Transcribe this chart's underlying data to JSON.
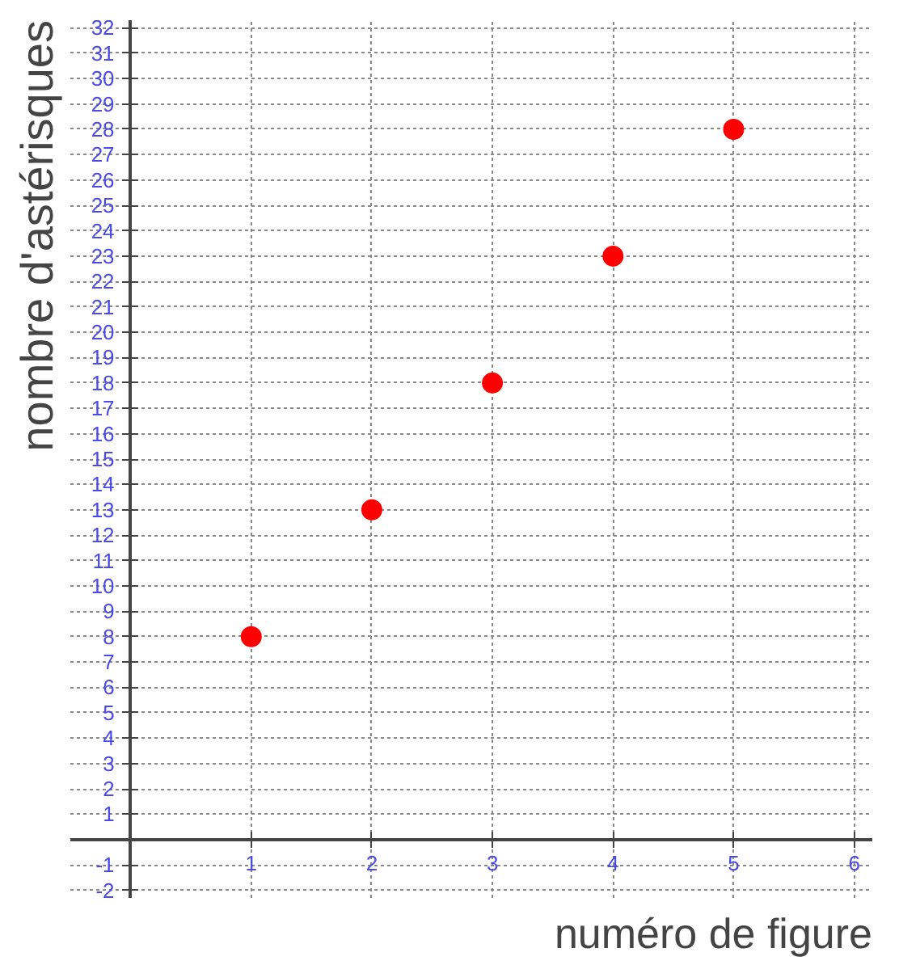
{
  "chart_data": {
    "type": "scatter",
    "xlabel": "numéro de figure",
    "ylabel": "nombre d'astérisques",
    "x": [
      1,
      2,
      3,
      4,
      5
    ],
    "series": [
      {
        "color": "#ff0000",
        "values": [
          8,
          13,
          18,
          23,
          28
        ]
      }
    ],
    "marker": "circle",
    "grid": true,
    "xlim": [
      -0.5,
      6.15
    ],
    "ylim": [
      -2.3,
      32.3
    ],
    "xticks": [
      1,
      2,
      3,
      4,
      5,
      6
    ],
    "yticks": [
      -2,
      -1,
      1,
      2,
      3,
      4,
      5,
      6,
      7,
      8,
      9,
      10,
      11,
      12,
      13,
      14,
      15,
      16,
      17,
      18,
      19,
      20,
      21,
      22,
      23,
      24,
      25,
      26,
      27,
      28,
      29,
      30,
      31,
      32
    ]
  }
}
